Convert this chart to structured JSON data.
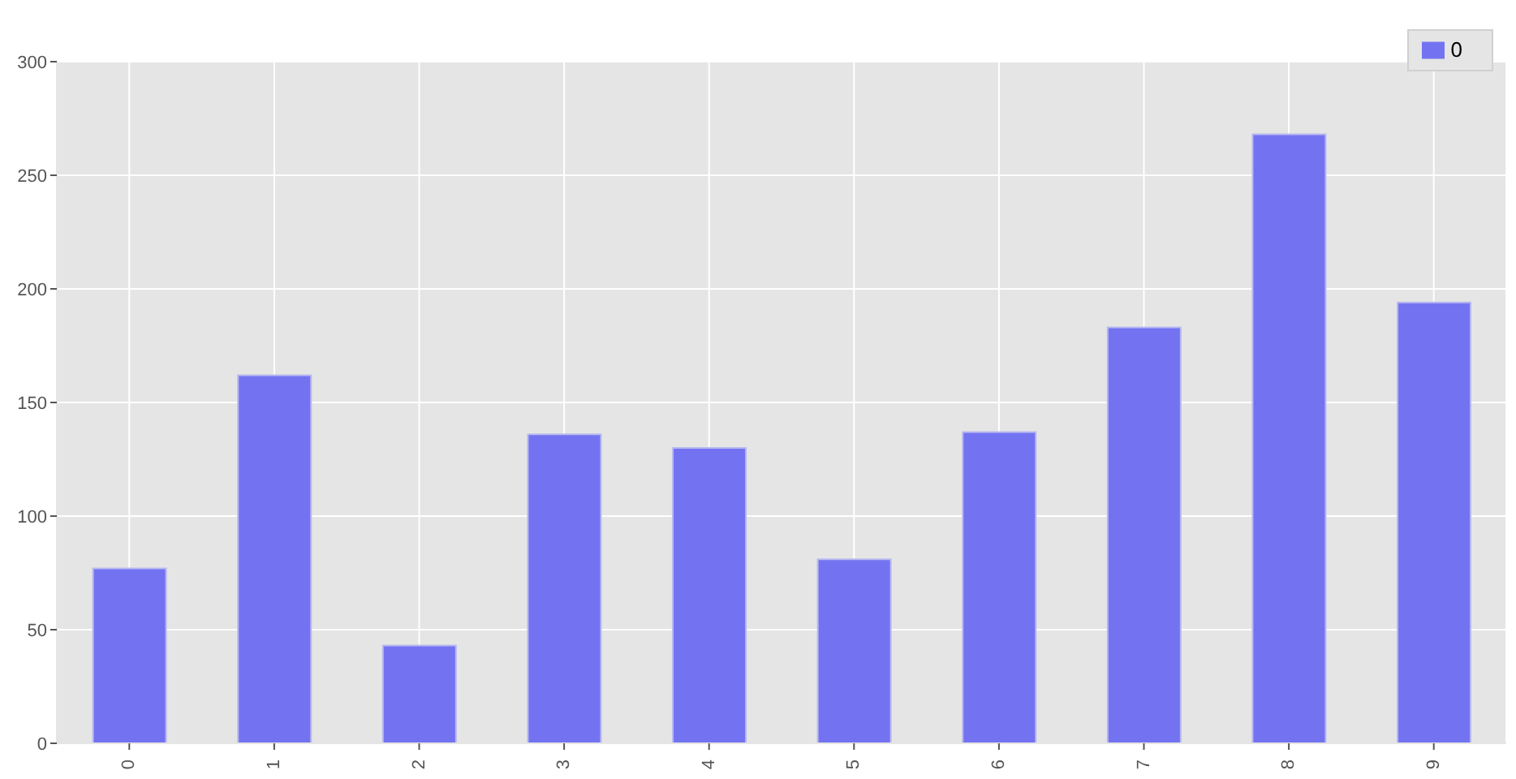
{
  "chart_data": {
    "type": "bar",
    "categories": [
      "0",
      "1",
      "2",
      "3",
      "4",
      "5",
      "6",
      "7",
      "8",
      "9"
    ],
    "series": [
      {
        "name": "0",
        "color": "#7373f2",
        "values": [
          77,
          162,
          43,
          136,
          130,
          81,
          137,
          183,
          268,
          194
        ]
      }
    ],
    "ylim": [
      0,
      300
    ],
    "yticks": [
      0,
      50,
      100,
      150,
      200,
      250,
      300
    ],
    "grid": true,
    "legend": "top right"
  }
}
